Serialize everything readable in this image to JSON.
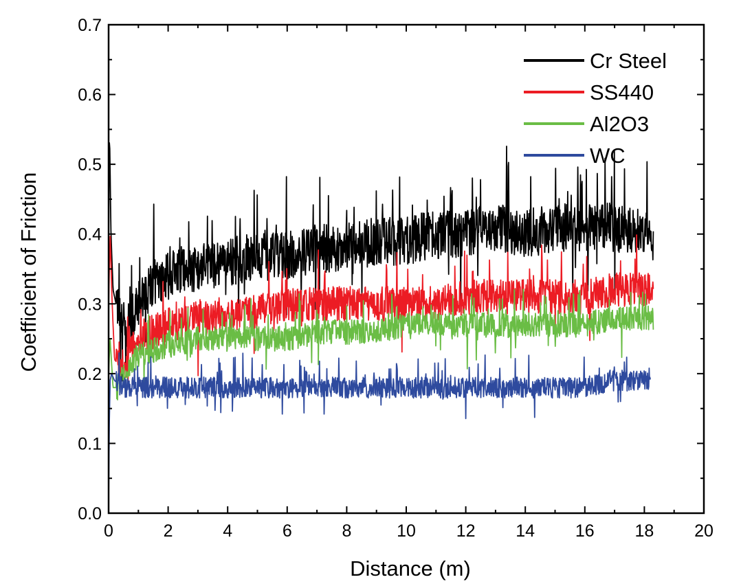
{
  "chart_data": {
    "type": "line",
    "title": "",
    "xlabel": "Distance (m)",
    "ylabel": "Coefficient of Friction",
    "xlim": [
      0,
      20
    ],
    "ylim": [
      0.0,
      0.7
    ],
    "xticks": [
      "0",
      "2",
      "4",
      "6",
      "8",
      "10",
      "12",
      "14",
      "16",
      "18",
      "20"
    ],
    "yticks": [
      "0.0",
      "0.1",
      "0.2",
      "0.3",
      "0.4",
      "0.5",
      "0.6",
      "0.7"
    ],
    "grid": false,
    "legend_position": "top-right",
    "series": [
      {
        "name": "Cr Steel",
        "color": "#000000",
        "noise": 0.035,
        "x": [
          0,
          0.03,
          0.08,
          0.15,
          0.3,
          0.5,
          0.7,
          0.9,
          1.2,
          1.5,
          2,
          2.5,
          3,
          4,
          5,
          6,
          7,
          8,
          9,
          10,
          11,
          12,
          13,
          14,
          15,
          16,
          17,
          18,
          18.3
        ],
        "y": [
          0.4,
          0.55,
          0.4,
          0.32,
          0.29,
          0.27,
          0.27,
          0.29,
          0.31,
          0.33,
          0.34,
          0.35,
          0.35,
          0.36,
          0.37,
          0.37,
          0.38,
          0.38,
          0.39,
          0.39,
          0.4,
          0.4,
          0.41,
          0.4,
          0.41,
          0.41,
          0.41,
          0.4,
          0.39
        ]
      },
      {
        "name": "SS440",
        "color": "#ec1c24",
        "noise": 0.025,
        "x": [
          0,
          0.05,
          0.12,
          0.2,
          0.4,
          0.6,
          0.8,
          1,
          1.5,
          2,
          2.5,
          3,
          4,
          5,
          6,
          7,
          8,
          9,
          10,
          11,
          12,
          13,
          14,
          15,
          16,
          17,
          18,
          18.3
        ],
        "y": [
          0.3,
          0.4,
          0.3,
          0.22,
          0.21,
          0.22,
          0.24,
          0.25,
          0.26,
          0.27,
          0.27,
          0.28,
          0.28,
          0.29,
          0.3,
          0.3,
          0.3,
          0.3,
          0.3,
          0.3,
          0.31,
          0.31,
          0.31,
          0.31,
          0.31,
          0.32,
          0.32,
          0.32
        ]
      },
      {
        "name": "Al2O3",
        "color": "#6abd45",
        "noise": 0.018,
        "x": [
          0,
          0.05,
          0.15,
          0.3,
          0.5,
          0.8,
          1.2,
          2,
          3,
          4,
          5,
          6,
          7,
          8,
          9,
          10,
          11,
          12,
          13,
          14,
          15,
          16,
          17,
          18,
          18.3
        ],
        "y": [
          0.2,
          0.25,
          0.18,
          0.18,
          0.2,
          0.22,
          0.23,
          0.24,
          0.25,
          0.25,
          0.25,
          0.25,
          0.26,
          0.26,
          0.26,
          0.27,
          0.27,
          0.27,
          0.27,
          0.27,
          0.27,
          0.27,
          0.28,
          0.28,
          0.28
        ]
      },
      {
        "name": "WC",
        "color": "#2e4a9e",
        "noise": 0.015,
        "x": [
          0,
          0.02,
          0.05,
          0.1,
          0.2,
          0.5,
          1,
          2,
          3,
          4,
          5,
          6,
          7,
          8,
          9,
          10,
          11,
          12,
          13,
          14,
          15,
          16,
          17,
          18,
          18.2
        ],
        "y": [
          0.02,
          0.12,
          0.19,
          0.2,
          0.19,
          0.18,
          0.18,
          0.18,
          0.18,
          0.18,
          0.18,
          0.18,
          0.18,
          0.18,
          0.18,
          0.18,
          0.18,
          0.18,
          0.18,
          0.18,
          0.18,
          0.18,
          0.19,
          0.19,
          0.19
        ]
      }
    ]
  }
}
